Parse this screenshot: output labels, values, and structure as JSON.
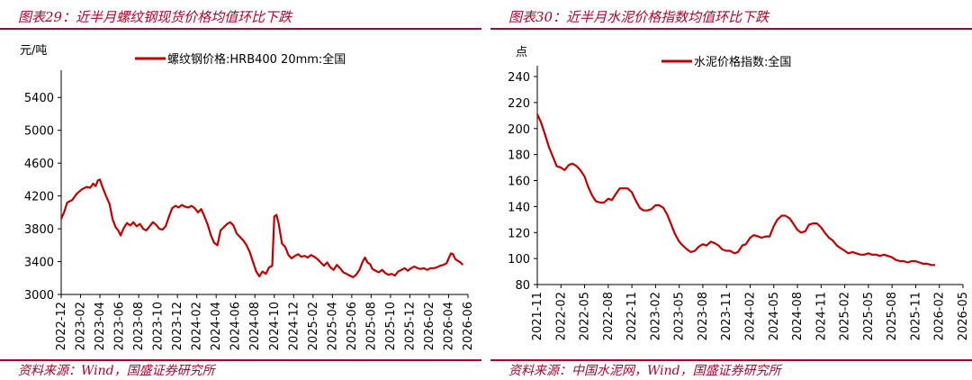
{
  "colors": {
    "accent": "#b3002b",
    "series": "#c00000",
    "axis": "#000000"
  },
  "chart_data": [
    {
      "type": "line",
      "header": "图表29：近半月螺纹钢现货价格均值环比下跌",
      "source": "资料来源：Wind，国盛证券研究所",
      "unit_label": "元/吨",
      "legend_position": "top",
      "grid": false,
      "ylim": [
        3000,
        5600
      ],
      "yticks": [
        "3000",
        "3400",
        "3800",
        "4200",
        "4600",
        "5000",
        "5400"
      ],
      "xlim": [
        "2022-12",
        "2026-06"
      ],
      "xticks": [
        "2022-12",
        "2023-02",
        "2023-04",
        "2023-06",
        "2023-08",
        "2023-10",
        "2023-12",
        "2024-02",
        "2024-04",
        "2024-06",
        "2024-08",
        "2024-10",
        "2024-12",
        "2025-02",
        "2025-04",
        "2025-06",
        "2025-08",
        "2025-10",
        "2025-12",
        "2026-02",
        "2026-04",
        "2026-06"
      ],
      "series": [
        {
          "name": "螺纹钢价格:HRB400 20mm:全国",
          "points": [
            [
              "2022-12-01",
              3920
            ],
            [
              "2022-12-10",
              4000
            ],
            [
              "2022-12-20",
              4120
            ],
            [
              "2023-01-05",
              4150
            ],
            [
              "2023-01-20",
              4230
            ],
            [
              "2023-02-05",
              4280
            ],
            [
              "2023-02-20",
              4310
            ],
            [
              "2023-03-01",
              4300
            ],
            [
              "2023-03-10",
              4350
            ],
            [
              "2023-03-18",
              4320
            ],
            [
              "2023-03-25",
              4390
            ],
            [
              "2023-04-01",
              4400
            ],
            [
              "2023-04-10",
              4300
            ],
            [
              "2023-04-20",
              4200
            ],
            [
              "2023-05-01",
              4100
            ],
            [
              "2023-05-10",
              3920
            ],
            [
              "2023-05-20",
              3820
            ],
            [
              "2023-05-28",
              3780
            ],
            [
              "2023-06-05",
              3720
            ],
            [
              "2023-06-15",
              3810
            ],
            [
              "2023-06-25",
              3870
            ],
            [
              "2023-07-05",
              3840
            ],
            [
              "2023-07-15",
              3880
            ],
            [
              "2023-07-25",
              3830
            ],
            [
              "2023-08-05",
              3860
            ],
            [
              "2023-08-15",
              3800
            ],
            [
              "2023-08-25",
              3780
            ],
            [
              "2023-09-05",
              3830
            ],
            [
              "2023-09-15",
              3880
            ],
            [
              "2023-09-25",
              3850
            ],
            [
              "2023-10-05",
              3800
            ],
            [
              "2023-10-15",
              3790
            ],
            [
              "2023-10-25",
              3830
            ],
            [
              "2023-11-05",
              3950
            ],
            [
              "2023-11-15",
              4050
            ],
            [
              "2023-11-25",
              4080
            ],
            [
              "2023-12-05",
              4060
            ],
            [
              "2023-12-15",
              4090
            ],
            [
              "2023-12-25",
              4070
            ],
            [
              "2024-01-05",
              4060
            ],
            [
              "2024-01-15",
              4080
            ],
            [
              "2024-01-25",
              4050
            ],
            [
              "2024-02-05",
              4000
            ],
            [
              "2024-02-15",
              4040
            ],
            [
              "2024-02-25",
              3950
            ],
            [
              "2024-03-05",
              3850
            ],
            [
              "2024-03-15",
              3720
            ],
            [
              "2024-03-25",
              3630
            ],
            [
              "2024-04-05",
              3600
            ],
            [
              "2024-04-15",
              3780
            ],
            [
              "2024-04-25",
              3820
            ],
            [
              "2024-05-05",
              3860
            ],
            [
              "2024-05-15",
              3880
            ],
            [
              "2024-05-25",
              3840
            ],
            [
              "2024-06-05",
              3740
            ],
            [
              "2024-06-15",
              3700
            ],
            [
              "2024-06-25",
              3660
            ],
            [
              "2024-07-05",
              3600
            ],
            [
              "2024-07-15",
              3520
            ],
            [
              "2024-07-25",
              3400
            ],
            [
              "2024-08-05",
              3280
            ],
            [
              "2024-08-15",
              3220
            ],
            [
              "2024-08-25",
              3280
            ],
            [
              "2024-09-05",
              3250
            ],
            [
              "2024-09-15",
              3330
            ],
            [
              "2024-09-25",
              3350
            ],
            [
              "2024-10-01",
              3950
            ],
            [
              "2024-10-08",
              3970
            ],
            [
              "2024-10-15",
              3860
            ],
            [
              "2024-10-25",
              3620
            ],
            [
              "2024-11-05",
              3580
            ],
            [
              "2024-11-15",
              3480
            ],
            [
              "2024-11-25",
              3440
            ],
            [
              "2024-12-05",
              3470
            ],
            [
              "2024-12-15",
              3490
            ],
            [
              "2024-12-25",
              3460
            ],
            [
              "2025-01-05",
              3470
            ],
            [
              "2025-01-15",
              3450
            ],
            [
              "2025-01-25",
              3480
            ],
            [
              "2025-02-05",
              3460
            ],
            [
              "2025-02-15",
              3430
            ],
            [
              "2025-02-25",
              3390
            ],
            [
              "2025-03-05",
              3350
            ],
            [
              "2025-03-15",
              3390
            ],
            [
              "2025-03-25",
              3330
            ],
            [
              "2025-04-05",
              3300
            ],
            [
              "2025-04-15",
              3360
            ],
            [
              "2025-04-25",
              3320
            ],
            [
              "2025-05-05",
              3270
            ],
            [
              "2025-05-15",
              3250
            ],
            [
              "2025-05-25",
              3230
            ],
            [
              "2025-06-05",
              3210
            ],
            [
              "2025-06-15",
              3240
            ],
            [
              "2025-06-25",
              3300
            ],
            [
              "2025-07-05",
              3400
            ],
            [
              "2025-07-12",
              3450
            ],
            [
              "2025-07-20",
              3390
            ],
            [
              "2025-07-28",
              3370
            ],
            [
              "2025-08-05",
              3310
            ],
            [
              "2025-08-15",
              3290
            ],
            [
              "2025-08-25",
              3270
            ],
            [
              "2025-09-05",
              3300
            ],
            [
              "2025-09-15",
              3260
            ],
            [
              "2025-09-25",
              3240
            ],
            [
              "2025-10-05",
              3250
            ],
            [
              "2025-10-15",
              3230
            ],
            [
              "2025-10-25",
              3280
            ],
            [
              "2025-11-05",
              3300
            ],
            [
              "2025-11-15",
              3320
            ],
            [
              "2025-11-25",
              3290
            ],
            [
              "2025-12-05",
              3320
            ],
            [
              "2025-12-15",
              3340
            ],
            [
              "2025-12-25",
              3320
            ],
            [
              "2026-01-05",
              3310
            ],
            [
              "2026-01-15",
              3320
            ],
            [
              "2026-01-25",
              3300
            ],
            [
              "2026-02-05",
              3320
            ],
            [
              "2026-02-15",
              3320
            ],
            [
              "2026-02-25",
              3330
            ],
            [
              "2026-03-05",
              3350
            ],
            [
              "2026-03-15",
              3360
            ],
            [
              "2026-03-25",
              3380
            ],
            [
              "2026-04-01",
              3440
            ],
            [
              "2026-04-08",
              3500
            ],
            [
              "2026-04-15",
              3490
            ],
            [
              "2026-04-22",
              3430
            ],
            [
              "2026-04-30",
              3410
            ],
            [
              "2026-05-08",
              3390
            ],
            [
              "2026-05-15",
              3360
            ]
          ]
        }
      ]
    },
    {
      "type": "line",
      "header": "图表30：近半月水泥价格指数均值环比下跌",
      "source": "资料来源：中国水泥网，Wind，国盛证券研究所",
      "unit_label": "点",
      "legend_position": "top",
      "grid": false,
      "ylim": [
        80,
        240
      ],
      "yticks": [
        "80",
        "100",
        "120",
        "140",
        "160",
        "180",
        "200",
        "220",
        "240"
      ],
      "xlim": [
        "2021-11",
        "2026-05"
      ],
      "xticks": [
        "2021-11",
        "2022-02",
        "2022-05",
        "2022-08",
        "2022-11",
        "2023-02",
        "2023-05",
        "2023-08",
        "2023-11",
        "2024-02",
        "2024-05",
        "2024-08",
        "2024-11",
        "2025-02",
        "2025-05",
        "2025-08",
        "2025-11",
        "2026-02",
        "2026-05"
      ],
      "series": [
        {
          "name": "水泥价格指数:全国",
          "points": [
            [
              "2021-11-01",
              211
            ],
            [
              "2021-11-15",
              205
            ],
            [
              "2021-12-01",
              195
            ],
            [
              "2021-12-15",
              186
            ],
            [
              "2022-01-01",
              178
            ],
            [
              "2022-01-15",
              171
            ],
            [
              "2022-02-01",
              170
            ],
            [
              "2022-02-15",
              168
            ],
            [
              "2022-03-01",
              172
            ],
            [
              "2022-03-15",
              173
            ],
            [
              "2022-04-01",
              171
            ],
            [
              "2022-04-15",
              168
            ],
            [
              "2022-05-01",
              163
            ],
            [
              "2022-05-15",
              155
            ],
            [
              "2022-06-01",
              148
            ],
            [
              "2022-06-15",
              144
            ],
            [
              "2022-07-01",
              143
            ],
            [
              "2022-07-15",
              143
            ],
            [
              "2022-08-01",
              146
            ],
            [
              "2022-08-15",
              145
            ],
            [
              "2022-09-01",
              150
            ],
            [
              "2022-09-15",
              154
            ],
            [
              "2022-10-01",
              154
            ],
            [
              "2022-10-15",
              154
            ],
            [
              "2022-11-01",
              151
            ],
            [
              "2022-11-15",
              145
            ],
            [
              "2022-12-01",
              139
            ],
            [
              "2022-12-15",
              137
            ],
            [
              "2023-01-01",
              137
            ],
            [
              "2023-01-15",
              138
            ],
            [
              "2023-02-01",
              141
            ],
            [
              "2023-02-15",
              141
            ],
            [
              "2023-03-01",
              139
            ],
            [
              "2023-03-15",
              134
            ],
            [
              "2023-04-01",
              126
            ],
            [
              "2023-04-15",
              119
            ],
            [
              "2023-05-01",
              113
            ],
            [
              "2023-05-15",
              110
            ],
            [
              "2023-06-01",
              107
            ],
            [
              "2023-06-15",
              105
            ],
            [
              "2023-07-01",
              106
            ],
            [
              "2023-07-15",
              109
            ],
            [
              "2023-08-01",
              111
            ],
            [
              "2023-08-15",
              110
            ],
            [
              "2023-09-01",
              113
            ],
            [
              "2023-09-15",
              112
            ],
            [
              "2023-10-01",
              110
            ],
            [
              "2023-10-15",
              107
            ],
            [
              "2023-11-01",
              106
            ],
            [
              "2023-11-15",
              106
            ],
            [
              "2023-12-01",
              104
            ],
            [
              "2023-12-15",
              105
            ],
            [
              "2024-01-01",
              110
            ],
            [
              "2024-01-15",
              111
            ],
            [
              "2024-02-01",
              116
            ],
            [
              "2024-02-15",
              118
            ],
            [
              "2024-03-01",
              117
            ],
            [
              "2024-03-15",
              116
            ],
            [
              "2024-04-01",
              117
            ],
            [
              "2024-04-15",
              117
            ],
            [
              "2024-05-01",
              125
            ],
            [
              "2024-05-15",
              130
            ],
            [
              "2024-06-01",
              133
            ],
            [
              "2024-06-15",
              133
            ],
            [
              "2024-07-01",
              131
            ],
            [
              "2024-07-15",
              127
            ],
            [
              "2024-08-01",
              122
            ],
            [
              "2024-08-15",
              120
            ],
            [
              "2024-09-01",
              121
            ],
            [
              "2024-09-15",
              126
            ],
            [
              "2024-10-01",
              127
            ],
            [
              "2024-10-15",
              127
            ],
            [
              "2024-11-01",
              124
            ],
            [
              "2024-11-15",
              120
            ],
            [
              "2024-12-01",
              116
            ],
            [
              "2024-12-15",
              114
            ],
            [
              "2025-01-01",
              110
            ],
            [
              "2025-01-15",
              108
            ],
            [
              "2025-02-01",
              106
            ],
            [
              "2025-02-15",
              104
            ],
            [
              "2025-03-01",
              105
            ],
            [
              "2025-03-15",
              104
            ],
            [
              "2025-04-01",
              103
            ],
            [
              "2025-04-15",
              103
            ],
            [
              "2025-05-01",
              104
            ],
            [
              "2025-05-15",
              103
            ],
            [
              "2025-06-01",
              103
            ],
            [
              "2025-06-15",
              102
            ],
            [
              "2025-07-01",
              103
            ],
            [
              "2025-07-15",
              102
            ],
            [
              "2025-08-01",
              101
            ],
            [
              "2025-08-15",
              99
            ],
            [
              "2025-09-01",
              98
            ],
            [
              "2025-09-15",
              98
            ],
            [
              "2025-10-01",
              97
            ],
            [
              "2025-10-15",
              98
            ],
            [
              "2025-11-01",
              98
            ],
            [
              "2025-11-15",
              97
            ],
            [
              "2025-12-01",
              96
            ],
            [
              "2025-12-15",
              96
            ],
            [
              "2026-01-01",
              95
            ],
            [
              "2026-01-15",
              95
            ]
          ]
        }
      ]
    }
  ]
}
